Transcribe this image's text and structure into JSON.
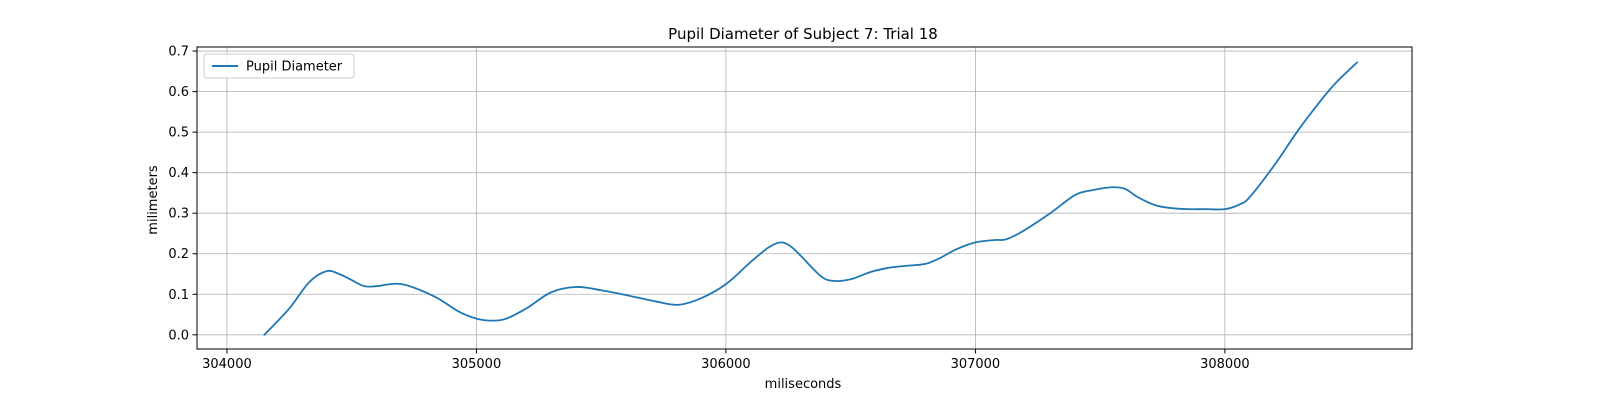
{
  "chart_data": {
    "type": "line",
    "title": "Pupil Diameter of Subject 7: Trial 18",
    "xlabel": "miliseconds",
    "ylabel": "milimeters",
    "xlim": [
      303880,
      308750
    ],
    "ylim": [
      -0.035,
      0.71
    ],
    "xticks": [
      304000,
      305000,
      306000,
      307000,
      308000
    ],
    "yticks": [
      0.0,
      0.1,
      0.2,
      0.3,
      0.4,
      0.5,
      0.6,
      0.7
    ],
    "xtick_labels": [
      "304000",
      "305000",
      "306000",
      "307000",
      "308000"
    ],
    "ytick_labels": [
      "0.0",
      "0.1",
      "0.2",
      "0.3",
      "0.4",
      "0.5",
      "0.6",
      "0.7"
    ],
    "grid": true,
    "legend_position": "upper-left",
    "series": [
      {
        "name": "Pupil Diameter",
        "color": "#1f77b4",
        "x": [
          304150,
          304250,
          304330,
          304400,
          304450,
          304500,
          304550,
          304600,
          304700,
          304830,
          304930,
          305000,
          305060,
          305120,
          305200,
          305300,
          305400,
          305500,
          305600,
          305720,
          305810,
          305900,
          306000,
          306100,
          306170,
          306220,
          306260,
          306300,
          306380,
          306430,
          306500,
          306580,
          306650,
          306720,
          306800,
          306860,
          306920,
          307000,
          307080,
          307120,
          307180,
          307300,
          307400,
          307470,
          307550,
          307600,
          307650,
          307720,
          307780,
          307850,
          307920,
          308000,
          308060,
          308100,
          308200,
          308300,
          308400,
          308450,
          308530
        ],
        "y": [
          0.0,
          0.065,
          0.13,
          0.157,
          0.15,
          0.135,
          0.12,
          0.12,
          0.125,
          0.095,
          0.057,
          0.04,
          0.035,
          0.04,
          0.065,
          0.105,
          0.118,
          0.11,
          0.098,
          0.082,
          0.074,
          0.09,
          0.125,
          0.18,
          0.215,
          0.228,
          0.218,
          0.195,
          0.145,
          0.133,
          0.137,
          0.155,
          0.165,
          0.17,
          0.175,
          0.19,
          0.21,
          0.228,
          0.234,
          0.235,
          0.252,
          0.3,
          0.345,
          0.357,
          0.364,
          0.36,
          0.34,
          0.32,
          0.313,
          0.31,
          0.31,
          0.31,
          0.322,
          0.34,
          0.42,
          0.51,
          0.59,
          0.625,
          0.672
        ]
      }
    ]
  }
}
